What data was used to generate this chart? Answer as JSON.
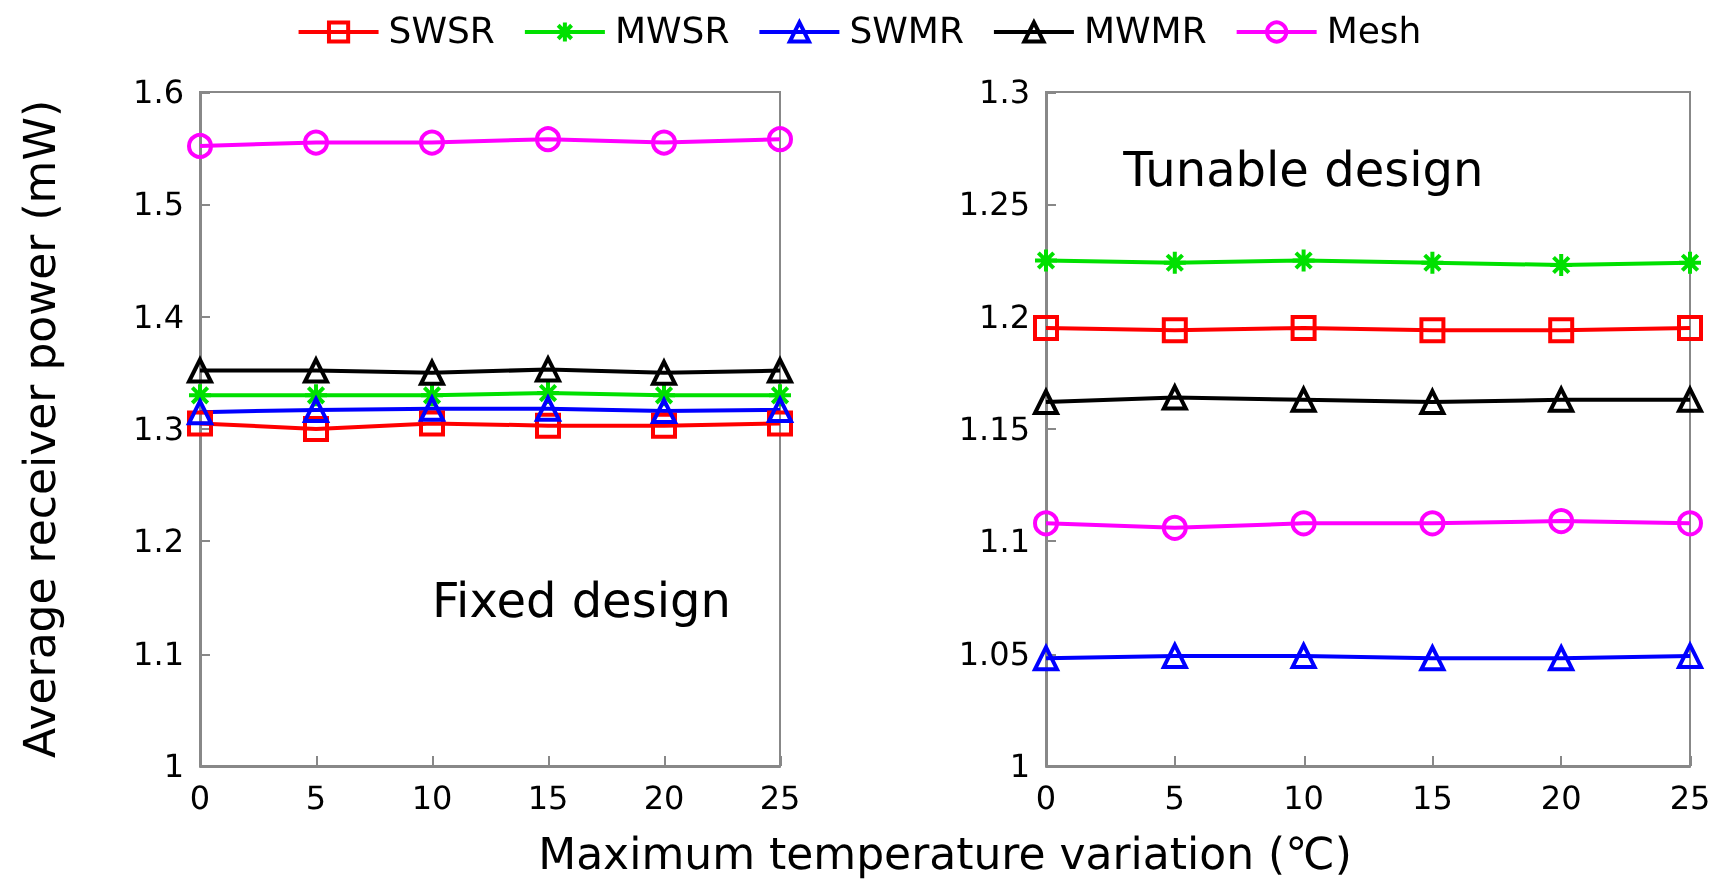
{
  "chart_data": [
    {
      "type": "line",
      "ylabel": "Average receiver power (mW)",
      "xlabel": "Maximum temperature variation (℃)",
      "annotations": [
        "Fixed design"
      ],
      "x": [
        0,
        5,
        10,
        15,
        20,
        25
      ],
      "xlim": [
        0,
        25
      ],
      "xticks": [
        0,
        5,
        10,
        15,
        20,
        25
      ],
      "ylim": [
        1,
        1.6
      ],
      "yticks": [
        1,
        1.1,
        1.2,
        1.3,
        1.4,
        1.5,
        1.6
      ],
      "grid": false,
      "legend": "top",
      "series": [
        {
          "name": "SWSR",
          "color": "#ff0000",
          "marker": "square",
          "values": [
            1.305,
            1.3,
            1.305,
            1.303,
            1.303,
            1.305
          ]
        },
        {
          "name": "MWSR",
          "color": "#00e000",
          "marker": "cross",
          "values": [
            1.33,
            1.33,
            1.33,
            1.332,
            1.33,
            1.33
          ]
        },
        {
          "name": "SWMR",
          "color": "#0000ff",
          "marker": "triangle",
          "values": [
            1.315,
            1.317,
            1.318,
            1.318,
            1.316,
            1.317
          ]
        },
        {
          "name": "MWMR",
          "color": "#000000",
          "marker": "triangle",
          "values": [
            1.352,
            1.352,
            1.35,
            1.353,
            1.35,
            1.352
          ]
        },
        {
          "name": "Mesh",
          "color": "#ff00ff",
          "marker": "circle",
          "values": [
            1.552,
            1.555,
            1.555,
            1.558,
            1.555,
            1.558
          ]
        }
      ]
    },
    {
      "type": "line",
      "annotations": [
        "Tunable design"
      ],
      "x": [
        0,
        5,
        10,
        15,
        20,
        25
      ],
      "xlim": [
        0,
        25
      ],
      "xticks": [
        0,
        5,
        10,
        15,
        20,
        25
      ],
      "ylim": [
        1,
        1.3
      ],
      "yticks": [
        1,
        1.05,
        1.1,
        1.15,
        1.2,
        1.25,
        1.3
      ],
      "grid": false,
      "legend": "top",
      "series": [
        {
          "name": "SWSR",
          "color": "#ff0000",
          "marker": "square",
          "values": [
            1.195,
            1.194,
            1.195,
            1.194,
            1.194,
            1.195
          ]
        },
        {
          "name": "MWSR",
          "color": "#00e000",
          "marker": "cross",
          "values": [
            1.225,
            1.224,
            1.225,
            1.224,
            1.223,
            1.224
          ]
        },
        {
          "name": "SWMR",
          "color": "#0000ff",
          "marker": "triangle",
          "values": [
            1.048,
            1.049,
            1.049,
            1.048,
            1.048,
            1.049
          ]
        },
        {
          "name": "MWMR",
          "color": "#000000",
          "marker": "triangle",
          "values": [
            1.162,
            1.164,
            1.163,
            1.162,
            1.163,
            1.163
          ]
        },
        {
          "name": "Mesh",
          "color": "#ff00ff",
          "marker": "circle",
          "values": [
            1.108,
            1.106,
            1.108,
            1.108,
            1.109,
            1.108
          ]
        }
      ]
    }
  ]
}
